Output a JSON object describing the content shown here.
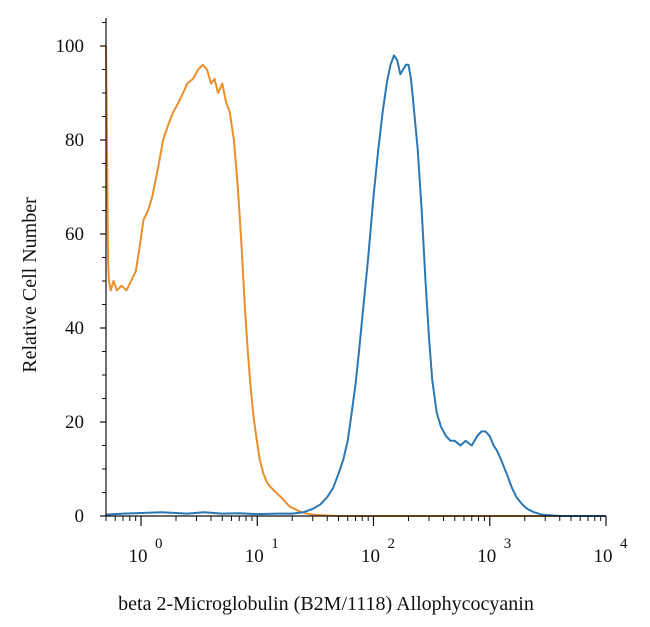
{
  "chart_data": {
    "type": "line",
    "title": "",
    "xlabel": "beta 2-Microglobulin (B2M/1118) Allophycocyanin",
    "ylabel": "Relative Cell Number",
    "xscale": "log",
    "xlim": [
      0.5,
      10000
    ],
    "ylim": [
      0,
      100
    ],
    "grid": false,
    "legend": "none",
    "y_ticks": [
      0,
      20,
      40,
      60,
      80,
      100
    ],
    "x_ticks": [
      {
        "value": 1,
        "base": "10",
        "exp": "0"
      },
      {
        "value": 10,
        "base": "10",
        "exp": "1"
      },
      {
        "value": 100,
        "base": "10",
        "exp": "2"
      },
      {
        "value": 1000,
        "base": "10",
        "exp": "3"
      },
      {
        "value": 10000,
        "base": "10",
        "exp": "4"
      }
    ],
    "series": [
      {
        "color": "#ea8f2a",
        "x": [
          0.5,
          0.51,
          0.52,
          0.53,
          0.55,
          0.58,
          0.62,
          0.68,
          0.75,
          0.82,
          0.9,
          0.97,
          1.05,
          1.15,
          1.25,
          1.4,
          1.55,
          1.7,
          1.9,
          2.1,
          2.3,
          2.5,
          2.8,
          3.1,
          3.4,
          3.7,
          4.0,
          4.3,
          4.6,
          5.0,
          5.4,
          5.8,
          6.3,
          6.8,
          7.3,
          7.8,
          8.3,
          8.8,
          9.3,
          9.8,
          10.5,
          11.3,
          12.2,
          13.2,
          14.5,
          16,
          17.5,
          19,
          21,
          23,
          26,
          30,
          35,
          40,
          50,
          70,
          100,
          200,
          500,
          1000,
          2000,
          5000,
          10000
        ],
        "values": [
          100,
          80,
          55,
          50,
          48,
          50,
          48,
          49,
          48,
          50,
          52,
          57,
          63,
          65,
          68,
          74,
          80,
          83,
          86,
          88,
          90,
          92,
          93,
          95,
          96,
          95,
          92,
          93,
          90,
          92,
          88,
          86,
          80,
          70,
          58,
          45,
          35,
          27,
          21,
          17,
          12,
          9,
          7,
          6,
          5,
          4,
          3,
          2,
          1.5,
          1,
          0.6,
          0.3,
          0.2,
          0.1,
          0,
          0,
          0,
          0,
          0,
          0,
          0,
          0,
          0
        ]
      },
      {
        "color": "#2a77b3",
        "x": [
          0.5,
          0.7,
          1.5,
          2.5,
          3.5,
          5,
          7,
          10,
          15,
          20,
          25,
          30,
          35,
          40,
          45,
          50,
          55,
          60,
          65,
          70,
          75,
          80,
          90,
          100,
          110,
          120,
          130,
          140,
          150,
          160,
          170,
          180,
          190,
          200,
          210,
          220,
          240,
          260,
          280,
          300,
          320,
          350,
          380,
          420,
          460,
          500,
          560,
          620,
          700,
          780,
          850,
          920,
          1000,
          1080,
          1150,
          1250,
          1400,
          1550,
          1700,
          1900,
          2100,
          2400,
          2800,
          3200,
          4000,
          10000
        ],
        "values": [
          0.3,
          0.5,
          0.8,
          0.5,
          0.8,
          0.5,
          0.6,
          0.4,
          0.5,
          0.5,
          0.8,
          1.5,
          2.5,
          4,
          6,
          9,
          12,
          16,
          22,
          28,
          35,
          42,
          55,
          68,
          78,
          86,
          92,
          96,
          98,
          97,
          94,
          95,
          96,
          96,
          93,
          88,
          78,
          65,
          50,
          38,
          29,
          22,
          19,
          17,
          16,
          16,
          15,
          16,
          15,
          17,
          18,
          18,
          17,
          15,
          14,
          12,
          9,
          6,
          4,
          2.5,
          1.5,
          0.8,
          0.3,
          0.2,
          0,
          0
        ]
      }
    ]
  }
}
